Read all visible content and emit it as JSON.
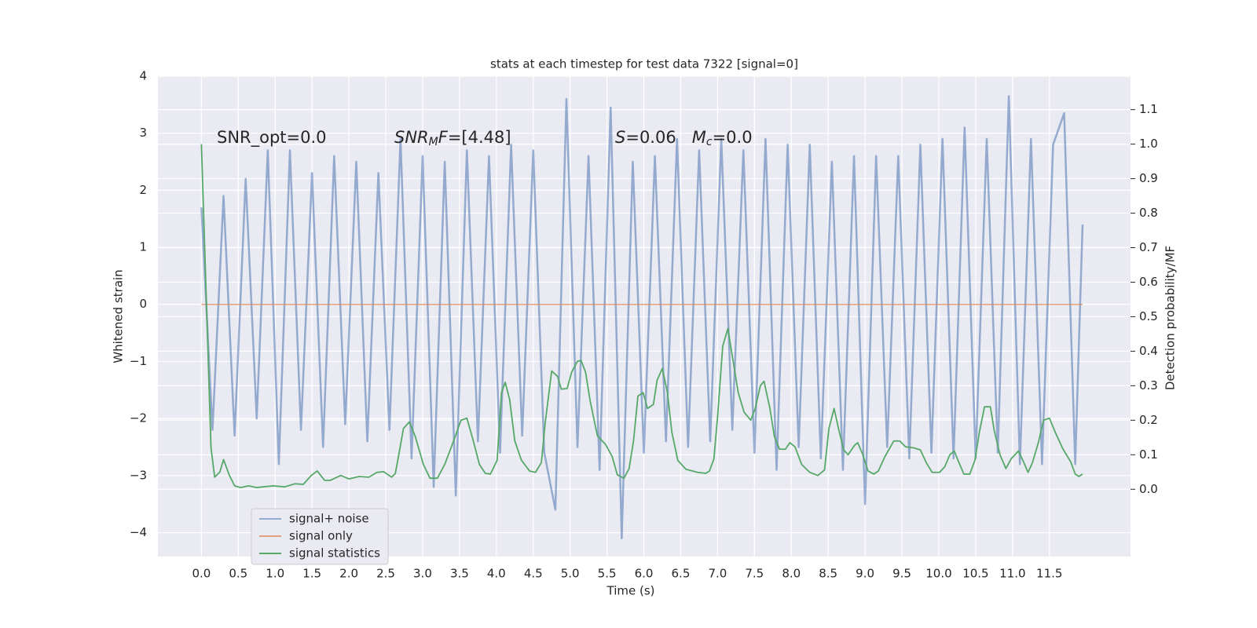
{
  "chart_data": {
    "type": "line",
    "title": "stats at each timestep for test data 7322 [signal=0]",
    "xlabel": "Time (s)",
    "ylabel": "Whitened strain",
    "y2label": "Detection probability/MF",
    "grid": true,
    "legend": "lower left",
    "annotations": [
      {
        "segments": [
          {
            "text": "SNR_opt=0.0",
            "style": "normal"
          }
        ]
      },
      {
        "segments": [
          {
            "text": "SNR",
            "style": "italic"
          },
          {
            "text": "M",
            "style": "italic-sub"
          },
          {
            "text": "F",
            "style": "italic"
          },
          {
            "text": "=[4.48]",
            "style": "normal"
          }
        ]
      },
      {
        "segments": [
          {
            "text": "S",
            "style": "italic"
          },
          {
            "text": "=0.06   ",
            "style": "normal"
          },
          {
            "text": "M",
            "style": "italic"
          },
          {
            "text": "c",
            "style": "italic-sub"
          },
          {
            "text": "=0.0",
            "style": "normal"
          }
        ]
      }
    ],
    "xlim": [
      -0.59,
      12.6
    ],
    "xticks": [
      {
        "value": 0,
        "label": "0.0"
      },
      0.5,
      {
        "value": 1,
        "label": "1.0"
      },
      1.5,
      {
        "value": 2,
        "label": "2.0"
      },
      2.5,
      {
        "value": 3,
        "label": "3.0"
      },
      3.5,
      {
        "value": 4,
        "label": "4.0"
      },
      4.5,
      {
        "value": 5,
        "label": "5.0"
      },
      5.5,
      {
        "value": 6,
        "label": "6.0"
      },
      6.5,
      {
        "value": 7,
        "label": "7.0"
      },
      7.5,
      {
        "value": 8,
        "label": "8.0"
      },
      8.5,
      {
        "value": 9,
        "label": "9.0"
      },
      9.5,
      {
        "value": 10,
        "label": "10.0"
      },
      10.5,
      {
        "value": 11,
        "label": "11.0"
      },
      11.5
    ],
    "ylim": [
      -4.42,
      4
    ],
    "yticks": [
      {
        "value": -4,
        "label": "−4"
      },
      {
        "value": -3,
        "label": "−3"
      },
      {
        "value": -2,
        "label": "−2"
      },
      {
        "value": -1,
        "label": "−1"
      },
      0,
      1,
      2,
      3,
      4
    ],
    "y2lim": [
      -0.195,
      1.197
    ],
    "y2ticks": [
      {
        "value": 0,
        "label": "0.0"
      },
      0.1,
      0.2,
      0.3,
      0.4,
      0.5,
      0.6,
      0.7,
      0.8,
      0.9,
      {
        "value": 1,
        "label": "1.0"
      },
      1.1
    ],
    "series": [
      {
        "name": "signal+ noise",
        "color": "#4c72b0",
        "x": [
          0,
          0.15,
          0.3,
          0.45,
          0.6,
          0.75,
          0.9,
          1.05,
          1.2,
          1.35,
          1.5,
          1.65,
          1.8,
          1.95,
          2.1,
          2.25,
          2.4,
          2.55,
          2.7,
          2.85,
          3.0,
          3.15,
          3.3,
          3.45,
          3.6,
          3.75,
          3.9,
          4.05,
          4.2,
          4.35,
          4.5,
          4.65,
          4.8,
          4.95,
          5.1,
          5.25,
          5.4,
          5.55,
          5.7,
          5.85,
          6.0,
          6.15,
          6.3,
          6.45,
          6.6,
          6.75,
          6.9,
          7.05,
          7.2,
          7.35,
          7.5,
          7.65,
          7.8,
          7.95,
          8.1,
          8.25,
          8.4,
          8.55,
          8.7,
          8.85,
          9.0,
          9.15,
          9.3,
          9.45,
          9.6,
          9.75,
          9.9,
          10.05,
          10.2,
          10.35,
          10.5,
          10.65,
          10.8,
          10.95,
          11.1,
          11.25,
          11.4,
          11.55,
          11.7,
          11.85,
          11.95
        ],
        "values": [
          1.7,
          -2.2,
          1.9,
          -2.3,
          2.2,
          -2.0,
          2.7,
          -2.8,
          2.7,
          -2.2,
          2.3,
          -2.5,
          2.6,
          -2.1,
          2.5,
          -2.4,
          2.3,
          -2.2,
          2.9,
          -2.7,
          2.6,
          -3.2,
          2.5,
          -3.35,
          2.7,
          -2.4,
          2.6,
          -2.6,
          2.8,
          -2.3,
          2.7,
          -2.6,
          -3.6,
          3.6,
          -2.5,
          2.6,
          -2.9,
          3.45,
          -4.1,
          2.5,
          -2.6,
          2.6,
          -2.4,
          2.9,
          -2.5,
          2.7,
          -2.4,
          2.9,
          -2.2,
          2.7,
          -2.6,
          2.9,
          -2.9,
          2.8,
          -2.5,
          2.8,
          -2.7,
          2.5,
          -2.9,
          2.6,
          -3.5,
          2.6,
          -2.5,
          2.6,
          -2.7,
          2.8,
          -2.6,
          2.9,
          -2.7,
          3.1,
          -2.7,
          2.9,
          -2.6,
          3.65,
          -2.8,
          2.9,
          -2.8,
          2.8,
          3.35,
          -2.8,
          1.4
        ]
      },
      {
        "name": "signal only",
        "color": "#dd8452",
        "x": [
          0,
          11.95
        ],
        "values": [
          0,
          0
        ]
      },
      {
        "name": "signal statistics",
        "color": "#55a868",
        "axis": "y2",
        "x": [
          0,
          0.13,
          0.18,
          0.25,
          0.3,
          0.38,
          0.45,
          0.53,
          0.64,
          0.75,
          0.97,
          1.13,
          1.27,
          1.38,
          1.49,
          1.57,
          1.67,
          1.75,
          1.89,
          2.0,
          2.14,
          2.27,
          2.38,
          2.47,
          2.58,
          2.63,
          2.68,
          2.74,
          2.82,
          2.9,
          3.01,
          3.1,
          3.2,
          3.3,
          3.42,
          3.52,
          3.6,
          3.68,
          3.77,
          3.85,
          3.92,
          4.01,
          4.07,
          4.12,
          4.18,
          4.25,
          4.34,
          4.45,
          4.53,
          4.61,
          4.66,
          4.75,
          4.83,
          4.88,
          4.96,
          5.02,
          5.1,
          5.15,
          5.21,
          5.27,
          5.37,
          5.48,
          5.57,
          5.64,
          5.73,
          5.8,
          5.86,
          5.92,
          5.99,
          6.05,
          6.13,
          6.18,
          6.25,
          6.32,
          6.38,
          6.46,
          6.57,
          6.73,
          6.84,
          6.89,
          6.95,
          7.0,
          7.07,
          7.14,
          7.2,
          7.28,
          7.36,
          7.45,
          7.51,
          7.58,
          7.63,
          7.71,
          7.77,
          7.84,
          7.92,
          7.98,
          8.05,
          8.14,
          8.25,
          8.36,
          8.45,
          8.51,
          8.58,
          8.64,
          8.71,
          8.77,
          8.86,
          8.9,
          8.97,
          9.04,
          9.12,
          9.18,
          9.27,
          9.39,
          9.47,
          9.55,
          9.66,
          9.75,
          9.83,
          9.91,
          10.01,
          10.08,
          10.15,
          10.21,
          10.26,
          10.34,
          10.42,
          10.49,
          10.55,
          10.62,
          10.7,
          10.75,
          10.83,
          10.91,
          10.98,
          11.08,
          11.14,
          11.21,
          11.27,
          11.35,
          11.42,
          11.5,
          11.58,
          11.68,
          11.79,
          11.85,
          11.9,
          11.95
        ],
        "values": [
          1.0,
          0.12,
          0.035,
          0.05,
          0.086,
          0.04,
          0.01,
          0.005,
          0.01,
          0.005,
          0.01,
          0.007,
          0.016,
          0.014,
          0.04,
          0.053,
          0.026,
          0.026,
          0.04,
          0.03,
          0.037,
          0.035,
          0.049,
          0.051,
          0.035,
          0.046,
          0.104,
          0.176,
          0.195,
          0.153,
          0.072,
          0.032,
          0.032,
          0.072,
          0.14,
          0.2,
          0.206,
          0.146,
          0.072,
          0.046,
          0.044,
          0.084,
          0.28,
          0.31,
          0.26,
          0.14,
          0.084,
          0.053,
          0.049,
          0.077,
          0.188,
          0.343,
          0.327,
          0.29,
          0.292,
          0.339,
          0.371,
          0.373,
          0.339,
          0.258,
          0.155,
          0.13,
          0.095,
          0.042,
          0.032,
          0.06,
          0.14,
          0.27,
          0.28,
          0.234,
          0.246,
          0.316,
          0.35,
          0.28,
          0.165,
          0.084,
          0.058,
          0.049,
          0.046,
          0.053,
          0.088,
          0.21,
          0.415,
          0.466,
          0.385,
          0.28,
          0.223,
          0.2,
          0.234,
          0.3,
          0.313,
          0.234,
          0.153,
          0.116,
          0.116,
          0.135,
          0.123,
          0.072,
          0.049,
          0.04,
          0.056,
          0.176,
          0.234,
          0.176,
          0.114,
          0.1,
          0.128,
          0.135,
          0.1,
          0.053,
          0.044,
          0.053,
          0.095,
          0.14,
          0.14,
          0.123,
          0.12,
          0.114,
          0.077,
          0.049,
          0.049,
          0.065,
          0.1,
          0.111,
          0.084,
          0.044,
          0.044,
          0.084,
          0.165,
          0.239,
          0.239,
          0.172,
          0.1,
          0.06,
          0.088,
          0.111,
          0.084,
          0.049,
          0.077,
          0.135,
          0.2,
          0.206,
          0.165,
          0.118,
          0.079,
          0.044,
          0.037,
          0.044
        ]
      }
    ]
  }
}
